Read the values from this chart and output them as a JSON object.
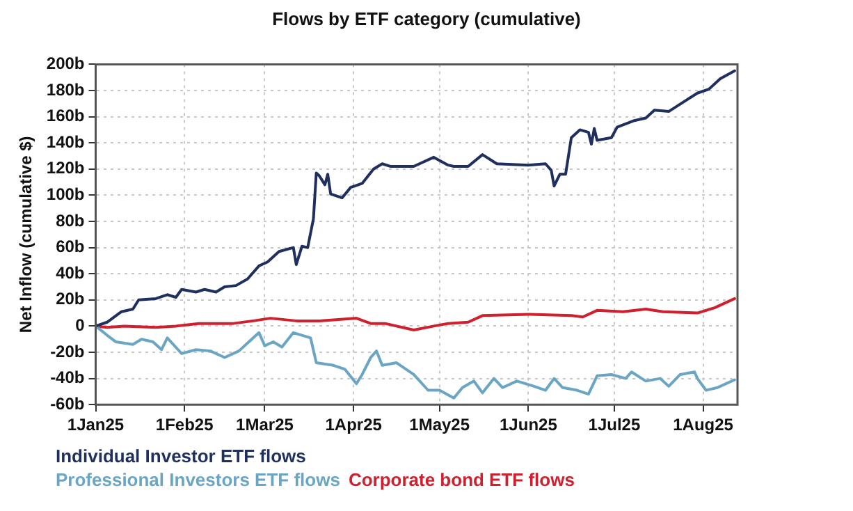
{
  "chart_data": {
    "type": "line",
    "title": "Flows by ETF category (cumulative)",
    "ylabel": "Net Inflow (cumulative $)",
    "xlim": [
      "2025-01-01",
      "2025-08-13"
    ],
    "xticks": [
      {
        "value": "2025-01-01",
        "label": "1Jan25"
      },
      {
        "value": "2025-02-01",
        "label": "1Feb25"
      },
      {
        "value": "2025-03-01",
        "label": "1Mar25"
      },
      {
        "value": "2025-04-01",
        "label": "1Apr25"
      },
      {
        "value": "2025-05-01",
        "label": "1May25"
      },
      {
        "value": "2025-06-01",
        "label": "1Jun25"
      },
      {
        "value": "2025-07-01",
        "label": "1Jul25"
      },
      {
        "value": "2025-08-01",
        "label": "1Aug25"
      }
    ],
    "ylim": [
      -60,
      200
    ],
    "yticks": [
      {
        "value": -60,
        "label": "-60b"
      },
      {
        "value": -40,
        "label": "-40b"
      },
      {
        "value": -20,
        "label": "-20b"
      },
      {
        "value": 0,
        "label": "0"
      },
      {
        "value": 20,
        "label": "20b"
      },
      {
        "value": 40,
        "label": "40b"
      },
      {
        "value": 60,
        "label": "60b"
      },
      {
        "value": 80,
        "label": "80b"
      },
      {
        "value": 100,
        "label": "100b"
      },
      {
        "value": 120,
        "label": "120b"
      },
      {
        "value": 140,
        "label": "140b"
      },
      {
        "value": 160,
        "label": "160b"
      },
      {
        "value": 180,
        "label": "180b"
      },
      {
        "value": 200,
        "label": "200b"
      }
    ],
    "grid": true,
    "legend": "bottom",
    "marker": "none",
    "line_style": "solid",
    "series": [
      {
        "name": "Individual Investor ETF flows",
        "color": "#1f2f5e",
        "x": [
          "2025-01-01",
          "2025-01-05",
          "2025-01-10",
          "2025-01-14",
          "2025-01-16",
          "2025-01-22",
          "2025-01-26",
          "2025-01-29",
          "2025-01-31",
          "2025-02-05",
          "2025-02-08",
          "2025-02-12",
          "2025-02-15",
          "2025-02-19",
          "2025-02-23",
          "2025-02-27",
          "2025-03-02",
          "2025-03-06",
          "2025-03-11",
          "2025-03-12",
          "2025-03-14",
          "2025-03-16",
          "2025-03-18",
          "2025-03-19",
          "2025-03-20",
          "2025-03-22",
          "2025-03-23",
          "2025-03-24",
          "2025-03-28",
          "2025-03-31",
          "2025-04-04",
          "2025-04-08",
          "2025-04-11",
          "2025-04-14",
          "2025-04-22",
          "2025-04-29",
          "2025-05-04",
          "2025-05-06",
          "2025-05-11",
          "2025-05-16",
          "2025-05-21",
          "2025-06-01",
          "2025-06-07",
          "2025-06-09",
          "2025-06-10",
          "2025-06-12",
          "2025-06-14",
          "2025-06-16",
          "2025-06-19",
          "2025-06-22",
          "2025-06-23",
          "2025-06-24",
          "2025-06-25",
          "2025-06-30",
          "2025-07-02",
          "2025-07-08",
          "2025-07-12",
          "2025-07-15",
          "2025-07-20",
          "2025-07-25",
          "2025-07-30",
          "2025-08-03",
          "2025-08-07",
          "2025-08-12"
        ],
        "values": [
          0,
          3,
          11,
          13,
          20,
          21,
          24,
          22,
          28,
          26,
          28,
          26,
          30,
          31,
          36,
          46,
          49,
          57,
          60,
          47,
          61,
          60,
          82,
          117,
          115,
          108,
          116,
          101,
          98,
          106,
          109,
          120,
          124,
          122,
          122,
          129,
          123,
          122,
          122,
          131,
          124,
          123,
          124,
          119,
          107,
          116,
          116,
          144,
          150,
          148,
          139,
          151,
          142,
          144,
          152,
          157,
          159,
          165,
          164,
          171,
          178,
          181,
          189,
          195
        ]
      },
      {
        "name": "Professional Investors ETF flows",
        "color": "#6aa6c4",
        "x": [
          "2025-01-01",
          "2025-01-05",
          "2025-01-08",
          "2025-01-14",
          "2025-01-17",
          "2025-01-21",
          "2025-01-24",
          "2025-01-26",
          "2025-01-31",
          "2025-02-05",
          "2025-02-10",
          "2025-02-15",
          "2025-02-20",
          "2025-02-24",
          "2025-02-27",
          "2025-03-01",
          "2025-03-04",
          "2025-03-07",
          "2025-03-11",
          "2025-03-17",
          "2025-03-19",
          "2025-03-25",
          "2025-03-29",
          "2025-04-02",
          "2025-04-04",
          "2025-04-07",
          "2025-04-09",
          "2025-04-11",
          "2025-04-16",
          "2025-04-22",
          "2025-04-27",
          "2025-05-01",
          "2025-05-06",
          "2025-05-09",
          "2025-05-13",
          "2025-05-16",
          "2025-05-20",
          "2025-05-23",
          "2025-05-28",
          "2025-06-03",
          "2025-06-07",
          "2025-06-10",
          "2025-06-13",
          "2025-06-18",
          "2025-06-22",
          "2025-06-25",
          "2025-06-30",
          "2025-07-05",
          "2025-07-07",
          "2025-07-12",
          "2025-07-17",
          "2025-07-20",
          "2025-07-24",
          "2025-07-29",
          "2025-07-30",
          "2025-08-02",
          "2025-08-06",
          "2025-08-09",
          "2025-08-12"
        ],
        "values": [
          0,
          -7,
          -12,
          -14,
          -10,
          -12,
          -18,
          -9,
          -21,
          -18,
          -19,
          -24,
          -19,
          -11,
          -5,
          -15,
          -12,
          -16,
          -5,
          -9,
          -28,
          -30,
          -33,
          -44,
          -37,
          -24,
          -19,
          -30,
          -28,
          -37,
          -49,
          -49,
          -55,
          -47,
          -42,
          -51,
          -40,
          -47,
          -42,
          -46,
          -49,
          -40,
          -47,
          -49,
          -52,
          -38,
          -37,
          -40,
          -35,
          -42,
          -40,
          -46,
          -37,
          -35,
          -40,
          -49,
          -47,
          -44,
          -41
        ]
      },
      {
        "name": "Corporate bond ETF flows",
        "color": "#d0202e",
        "x": [
          "2025-01-01",
          "2025-01-05",
          "2025-01-11",
          "2025-01-22",
          "2025-01-29",
          "2025-02-06",
          "2025-02-18",
          "2025-02-25",
          "2025-03-03",
          "2025-03-12",
          "2025-03-20",
          "2025-04-02",
          "2025-04-07",
          "2025-04-12",
          "2025-04-22",
          "2025-04-29",
          "2025-05-04",
          "2025-05-11",
          "2025-05-16",
          "2025-06-01",
          "2025-06-16",
          "2025-06-20",
          "2025-06-25",
          "2025-07-04",
          "2025-07-12",
          "2025-07-18",
          "2025-07-30",
          "2025-08-05",
          "2025-08-12"
        ],
        "values": [
          0,
          -1,
          0,
          -1,
          0,
          2,
          2,
          4,
          6,
          4,
          4,
          6,
          2,
          2,
          -3,
          0,
          2,
          3,
          8,
          9,
          8,
          7,
          12,
          11,
          13,
          11,
          10,
          14,
          21
        ]
      }
    ]
  }
}
